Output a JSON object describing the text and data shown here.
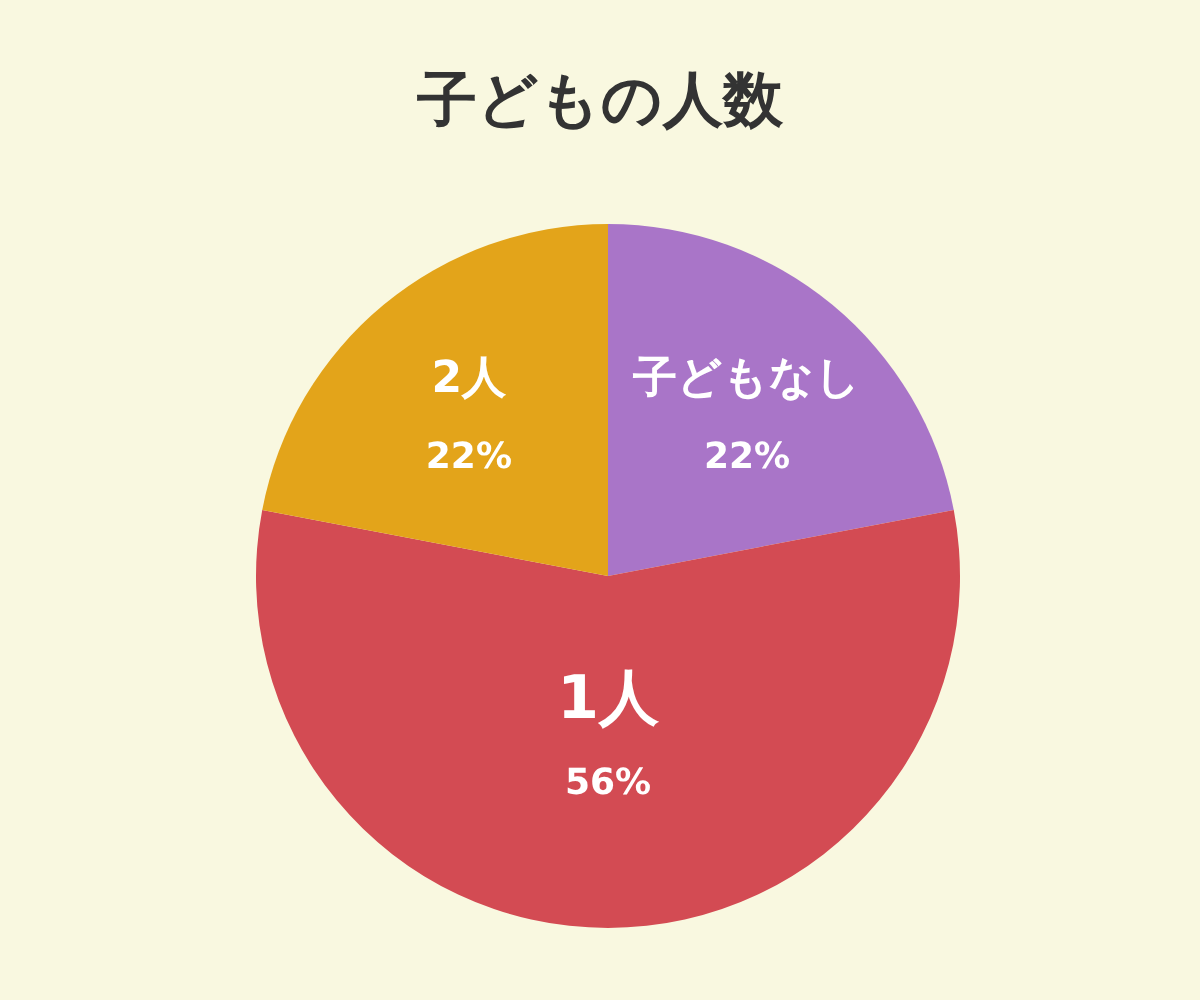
{
  "chart_data": {
    "type": "pie",
    "title": "子どもの人数",
    "categories": [
      "子どもなし",
      "1人",
      "2人"
    ],
    "values": [
      22,
      56,
      22
    ],
    "value_labels": [
      "22%",
      "56%",
      "22%"
    ],
    "colors": [
      "#a975c8",
      "#d34b53",
      "#e3a41a"
    ]
  }
}
